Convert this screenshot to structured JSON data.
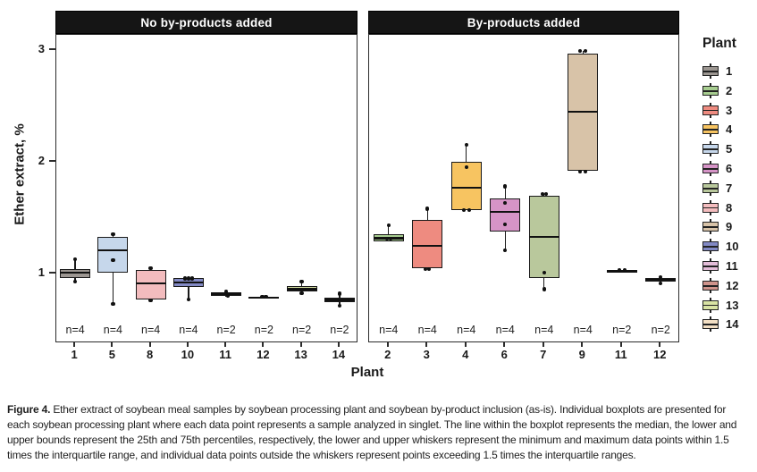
{
  "chart_data": {
    "type": "boxplot",
    "title": "",
    "ylabel": "Ether extract, %",
    "xlabel": "Plant",
    "yticks": [
      "1",
      "2",
      "3"
    ],
    "ylim": [
      0.4,
      3.15
    ],
    "grid": false,
    "legend_position": "right",
    "panels": [
      {
        "title": "No by-products added",
        "plants": [
          {
            "plant": "1",
            "n_label": "n=4",
            "color": "#9c9691",
            "low": 0.93,
            "q1": 0.96,
            "median": 1.01,
            "q3": 1.04,
            "high": 1.13,
            "points": [
              [
                1.13,
                0
              ],
              [
                0.93,
                0
              ]
            ]
          },
          {
            "plant": "5",
            "n_label": "n=4",
            "color": "#c6d7eb",
            "low": 0.73,
            "q1": 1.01,
            "median": 1.21,
            "q3": 1.33,
            "high": 1.35,
            "points": [
              [
                1.35,
                0
              ],
              [
                1.12,
                0
              ],
              [
                0.73,
                0
              ]
            ]
          },
          {
            "plant": "8",
            "n_label": "n=4",
            "color": "#f3bcbe",
            "low": 0.76,
            "q1": 0.77,
            "median": 0.91,
            "q3": 1.03,
            "high": 1.05,
            "points": [
              [
                1.05,
                0
              ],
              [
                0.76,
                0
              ]
            ]
          },
          {
            "plant": "10",
            "n_label": "n=4",
            "color": "#8289c4",
            "low": 0.77,
            "q1": 0.88,
            "median": 0.92,
            "q3": 0.96,
            "high": 0.96,
            "points": [
              [
                0.955,
                -4
              ],
              [
                0.955,
                0
              ],
              [
                0.955,
                4
              ],
              [
                0.77,
                0
              ]
            ]
          },
          {
            "plant": "11",
            "n_label": "n=2",
            "color": "#e4bdd9",
            "low": 0.795,
            "q1": 0.8,
            "median": 0.82,
            "q3": 0.835,
            "high": 0.84,
            "points": [
              [
                0.84,
                0
              ],
              [
                0.8,
                2
              ]
            ]
          },
          {
            "plant": "12",
            "n_label": "n=2",
            "color": "#cf948c",
            "low": 0.775,
            "q1": 0.775,
            "median": 0.785,
            "q3": 0.79,
            "high": 0.79,
            "points": [
              [
                0.79,
                -2
              ],
              [
                0.79,
                2
              ]
            ]
          },
          {
            "plant": "13",
            "n_label": "n=2",
            "color": "#d9e3a4",
            "low": 0.825,
            "q1": 0.84,
            "median": 0.86,
            "q3": 0.885,
            "high": 0.93,
            "points": [
              [
                0.93,
                0
              ],
              [
                0.825,
                0
              ]
            ]
          },
          {
            "plant": "14",
            "n_label": "n=2",
            "color": "#f3dfc4",
            "low": 0.71,
            "q1": 0.745,
            "median": 0.765,
            "q3": 0.785,
            "high": 0.82,
            "points": [
              [
                0.82,
                0
              ],
              [
                0.71,
                0
              ]
            ]
          }
        ]
      },
      {
        "title": "By-products added",
        "plants": [
          {
            "plant": "2",
            "n_label": "n=4",
            "color": "#a7cd90",
            "low": 1.29,
            "q1": 1.29,
            "median": 1.315,
            "q3": 1.355,
            "high": 1.43,
            "points": [
              [
                1.43,
                0
              ],
              [
                1.31,
                -2
              ],
              [
                1.31,
                2
              ]
            ]
          },
          {
            "plant": "3",
            "n_label": "n=4",
            "color": "#ee8b80",
            "low": 1.04,
            "q1": 1.05,
            "median": 1.25,
            "q3": 1.48,
            "high": 1.58,
            "points": [
              [
                1.58,
                0
              ],
              [
                1.04,
                -2
              ],
              [
                1.04,
                2
              ]
            ]
          },
          {
            "plant": "4",
            "n_label": "n=4",
            "color": "#f7c461",
            "low": 1.57,
            "q1": 1.57,
            "median": 1.77,
            "q3": 2.0,
            "high": 2.15,
            "points": [
              [
                2.15,
                0
              ],
              [
                1.95,
                0
              ],
              [
                1.57,
                -3
              ],
              [
                1.57,
                3
              ]
            ]
          },
          {
            "plant": "6",
            "n_label": "n=4",
            "color": "#d694c7",
            "low": 1.21,
            "q1": 1.38,
            "median": 1.55,
            "q3": 1.67,
            "high": 1.78,
            "points": [
              [
                1.78,
                0
              ],
              [
                1.63,
                0
              ],
              [
                1.44,
                0
              ],
              [
                1.21,
                0
              ]
            ]
          },
          {
            "plant": "7",
            "n_label": "n=4",
            "color": "#b9c89c",
            "low": 0.86,
            "q1": 0.96,
            "median": 1.33,
            "q3": 1.7,
            "high": 1.71,
            "points": [
              [
                1.71,
                -2
              ],
              [
                1.71,
                2
              ],
              [
                1.01,
                0
              ],
              [
                0.86,
                0
              ]
            ]
          },
          {
            "plant": "9",
            "n_label": "n=4",
            "color": "#d8c3a8",
            "low": 1.92,
            "q1": 1.92,
            "median": 2.45,
            "q3": 2.97,
            "high": 2.99,
            "points": [
              [
                2.99,
                -3
              ],
              [
                2.99,
                3
              ],
              [
                1.91,
                -3
              ],
              [
                1.91,
                3
              ]
            ]
          },
          {
            "plant": "11",
            "n_label": "n=2",
            "color": "#e4bdd9",
            "low": 1.01,
            "q1": 1.01,
            "median": 1.02,
            "q3": 1.03,
            "high": 1.03,
            "points": [
              [
                1.03,
                -3
              ],
              [
                1.03,
                3
              ]
            ]
          },
          {
            "plant": "12",
            "n_label": "n=2",
            "color": "#cf948c",
            "low": 0.91,
            "q1": 0.925,
            "median": 0.945,
            "q3": 0.96,
            "high": 0.97,
            "points": [
              [
                0.97,
                0
              ],
              [
                0.91,
                0
              ]
            ]
          }
        ]
      }
    ],
    "legend": {
      "title": "Plant",
      "items": [
        {
          "label": "1",
          "color": "#9c9691"
        },
        {
          "label": "2",
          "color": "#a7cd90"
        },
        {
          "label": "3",
          "color": "#ee8b80"
        },
        {
          "label": "4",
          "color": "#f7c461"
        },
        {
          "label": "5",
          "color": "#c6d7eb"
        },
        {
          "label": "6",
          "color": "#d694c7"
        },
        {
          "label": "7",
          "color": "#b9c89c"
        },
        {
          "label": "8",
          "color": "#f3bcbe"
        },
        {
          "label": "9",
          "color": "#d8c3a8"
        },
        {
          "label": "10",
          "color": "#8289c4"
        },
        {
          "label": "11",
          "color": "#e4bdd9"
        },
        {
          "label": "12",
          "color": "#cf948c"
        },
        {
          "label": "13",
          "color": "#d9e3a4"
        },
        {
          "label": "14",
          "color": "#f3dfc4"
        }
      ]
    }
  },
  "caption": {
    "label": "Figure 4.",
    "text": "Ether extract of soybean meal samples by soybean processing plant and soybean by-product inclusion (as-is). Individual boxplots are presented for each soybean processing plant where each data point represents a sample analyzed in singlet. The line within the boxplot represents the median, the lower and upper bounds represent the 25th and 75th percentiles, respectively, the lower and upper whiskers represent the minimum and maximum data points within 1.5 times the interquartile range, and individual data points outside the whiskers represent points exceeding 1.5 times the interquartile ranges."
  }
}
